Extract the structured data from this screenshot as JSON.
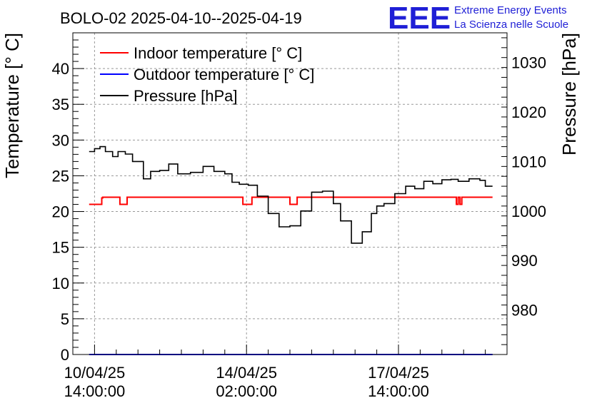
{
  "chart_data": {
    "type": "line",
    "title": "BOLO-02 2025-04-10--2025-04-19",
    "logo": {
      "mark": "EEE",
      "line1": "Extreme Energy Events",
      "line2": "La Scienza nelle Scuole"
    },
    "ylabel": "Temperature [° C]",
    "y2label": "Pressure [hPa]",
    "xlim": [
      "2025-04-10T02:00:00",
      "2025-04-20T02:00:00"
    ],
    "ylim": [
      0,
      45
    ],
    "y2lim": [
      971,
      1036
    ],
    "y_ticks": [
      "0",
      "5",
      "10",
      "15",
      "20",
      "25",
      "30",
      "35",
      "40"
    ],
    "y2_ticks": [
      "980",
      "990",
      "1000",
      "1010",
      "1020",
      "1030"
    ],
    "x_ticks": [
      {
        "t": "2025-04-10T14:00:00",
        "date": "10/04/25",
        "time": "14:00:00"
      },
      {
        "t": "2025-04-14T02:00:00",
        "date": "14/04/25",
        "time": "02:00:00"
      },
      {
        "t": "2025-04-17T14:00:00",
        "date": "17/04/25",
        "time": "14:00:00"
      }
    ],
    "grid": true,
    "legend_position": "top-left",
    "series": [
      {
        "name": "Indoor temperature [° C]",
        "axis": "left",
        "color": "#ff0000",
        "x": [
          "2025-04-10T11:00:00",
          "2025-04-10T18:00:00",
          "2025-04-10T18:00:00",
          "2025-04-10T18:30:00",
          "2025-04-10T18:30:00",
          "2025-04-10T22:00:00",
          "2025-04-11T04:00:00",
          "2025-04-11T04:00:00",
          "2025-04-11T08:00:00",
          "2025-04-11T08:00:00",
          "2025-04-12T10:00:00",
          "2025-04-13T10:00:00",
          "2025-04-14T00:00:00",
          "2025-04-14T00:00:00",
          "2025-04-14T05:00:00",
          "2025-04-14T05:00:00",
          "2025-04-15T02:00:00",
          "2025-04-15T02:00:00",
          "2025-04-15T06:00:00",
          "2025-04-15T06:00:00",
          "2025-04-16T12:00:00",
          "2025-04-17T20:00:00",
          "2025-04-18T12:00:00",
          "2025-04-18T22:00:00",
          "2025-04-18T22:00:00",
          "2025-04-18T23:00:00",
          "2025-04-19T00:00:00",
          "2025-04-19T01:00:00",
          "2025-04-19T01:00:00",
          "2025-04-19T12:00:00",
          "2025-04-19T18:00:00"
        ],
        "y": [
          21,
          21,
          21.9,
          21.9,
          22,
          22,
          22,
          21,
          21,
          22,
          22,
          22,
          22,
          21,
          21,
          22,
          22,
          21,
          21,
          22,
          22,
          22,
          22,
          22,
          21,
          22,
          21,
          21.9,
          22,
          22,
          22
        ]
      },
      {
        "name": "Outdoor temperature [° C]",
        "axis": "left",
        "color": "#0000ff",
        "x": [
          "2025-04-10T11:00:00",
          "2025-04-19T18:00:00"
        ],
        "y": [
          0,
          0
        ]
      },
      {
        "name": "Pressure [hPa]",
        "axis": "right",
        "color": "#000000",
        "x": [
          "2025-04-10T11:00:00",
          "2025-04-10T14:00:00",
          "2025-04-10T17:00:00",
          "2025-04-10T20:00:00",
          "2025-04-11T00:00:00",
          "2025-04-11T03:00:00",
          "2025-04-11T07:00:00",
          "2025-04-11T11:00:00",
          "2025-04-11T17:00:00",
          "2025-04-11T21:00:00",
          "2025-04-12T02:00:00",
          "2025-04-12T07:00:00",
          "2025-04-12T12:00:00",
          "2025-04-12T19:00:00",
          "2025-04-13T02:00:00",
          "2025-04-13T08:00:00",
          "2025-04-13T14:00:00",
          "2025-04-13T18:00:00",
          "2025-04-13T22:00:00",
          "2025-04-14T03:00:00",
          "2025-04-14T08:00:00",
          "2025-04-14T14:00:00",
          "2025-04-14T20:00:00",
          "2025-04-15T02:00:00",
          "2025-04-15T08:00:00",
          "2025-04-15T14:00:00",
          "2025-04-15T20:00:00",
          "2025-04-16T02:00:00",
          "2025-04-16T06:00:00",
          "2025-04-16T12:00:00",
          "2025-04-16T18:00:00",
          "2025-04-16T23:00:00",
          "2025-04-17T02:00:00",
          "2025-04-17T06:00:00",
          "2025-04-17T12:00:00",
          "2025-04-17T18:00:00",
          "2025-04-17T23:00:00",
          "2025-04-18T04:00:00",
          "2025-04-18T09:00:00",
          "2025-04-18T14:00:00",
          "2025-04-18T19:00:00",
          "2025-04-18T23:00:00",
          "2025-04-19T05:00:00",
          "2025-04-19T11:00:00",
          "2025-04-19T14:00:00",
          "2025-04-19T18:00:00"
        ],
        "y": [
          1012,
          1012.6,
          1013,
          1012,
          1011,
          1012,
          1011.5,
          1010,
          1006.5,
          1008,
          1008.2,
          1009.5,
          1007.5,
          1007.8,
          1009,
          1008,
          1007.5,
          1005.8,
          1005.4,
          1005.2,
          1003,
          999.5,
          996.8,
          997,
          1000,
          1003.8,
          1004,
          1001.5,
          998,
          993.5,
          995.8,
          999.5,
          1001,
          1001.5,
          1003.5,
          1005,
          1004.5,
          1006,
          1005.5,
          1006.3,
          1006.4,
          1006,
          1006.5,
          1006.2,
          1005,
          1005
        ]
      }
    ]
  }
}
